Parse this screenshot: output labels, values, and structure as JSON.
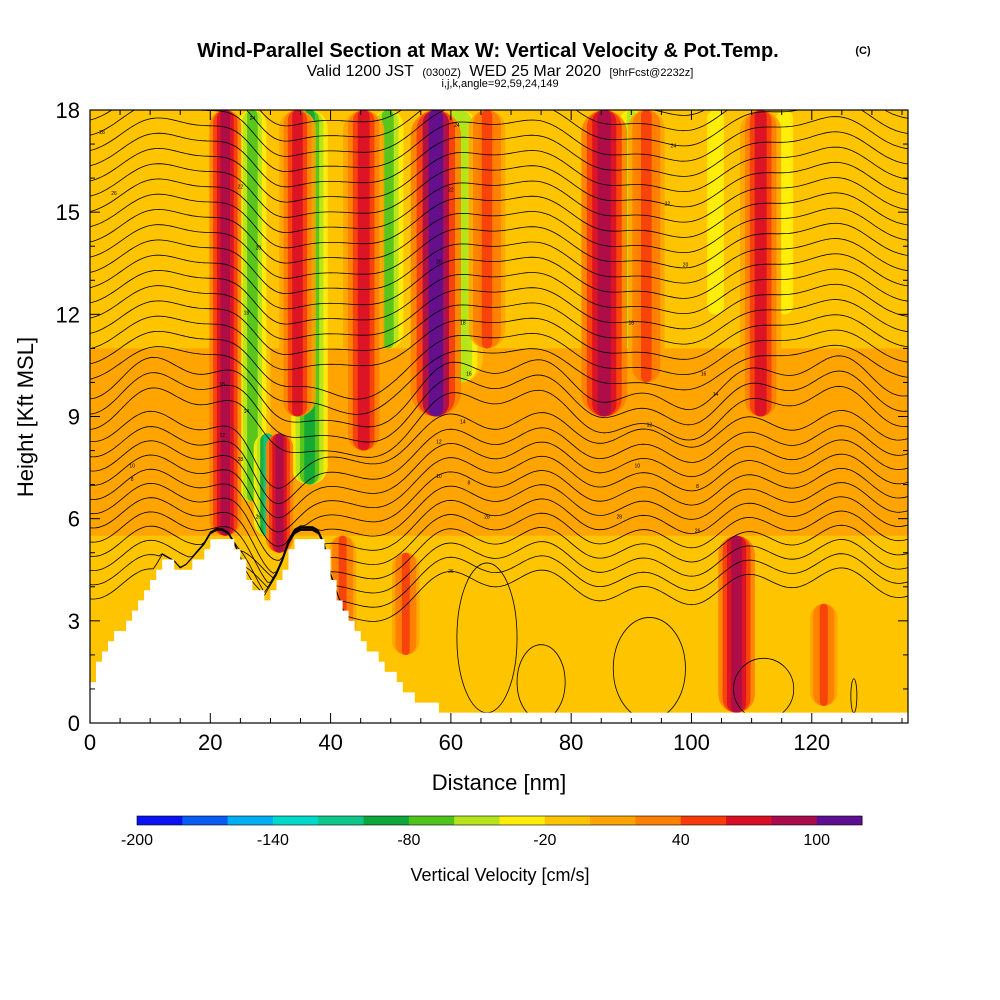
{
  "header": {
    "title": "Wind-Parallel Section at Max W: Vertical Velocity & Pot.Temp.",
    "title_tag": "(C)",
    "subtitle_a": "Valid 1200 JST",
    "subtitle_b": "(0300Z)",
    "subtitle_c": "WED 25 Mar 2020",
    "subtitle_d": "[9hrFcst@2232z]",
    "subtitle_e": "i,j,k,angle=92,59,24,149"
  },
  "chart_data": {
    "type": "heatmap",
    "xlabel": "Distance [nm]",
    "ylabel": "Height [Kft MSL]",
    "xlim": [
      0,
      136
    ],
    "ylim": [
      0,
      18
    ],
    "x_ticks": [
      0,
      20,
      40,
      60,
      80,
      100,
      120
    ],
    "y_ticks": [
      0,
      3,
      6,
      9,
      12,
      15,
      18
    ],
    "colorbar": {
      "label": "Vertical Velocity [cm/s]",
      "range": [
        -200,
        120
      ],
      "tick_values": [
        -200,
        -140,
        -80,
        -20,
        40,
        100
      ],
      "tick_labels": [
        "-200",
        "-140",
        "-80",
        "-20",
        "40",
        "100"
      ],
      "colors": [
        "#0b12f2",
        "#0a5bf2",
        "#00aef2",
        "#00d9c9",
        "#0fc58a",
        "#0da63a",
        "#50c21c",
        "#b4e41c",
        "#ffee0a",
        "#ffc400",
        "#ffa400",
        "#ff7f00",
        "#f73c0c",
        "#d81026",
        "#a80c4c",
        "#5d0f93"
      ]
    },
    "updraft_columns": [
      {
        "x": 22.5,
        "w": 1.4,
        "z0": 5.5,
        "z1": 18,
        "value": 80
      },
      {
        "x": 31.5,
        "w": 1.2,
        "z0": 5.0,
        "z1": 8.5,
        "value": 80
      },
      {
        "x": 34.5,
        "w": 1.6,
        "z0": 9.0,
        "z1": 18,
        "value": 60
      },
      {
        "x": 42.0,
        "w": 1.2,
        "z0": 2.5,
        "z1": 5.5,
        "value": 50
      },
      {
        "x": 45.5,
        "w": 1.8,
        "z0": 8.0,
        "z1": 18,
        "value": 70
      },
      {
        "x": 52.5,
        "w": 1.2,
        "z0": 2.0,
        "z1": 5.0,
        "value": 50
      },
      {
        "x": 57.5,
        "w": 2.2,
        "z0": 9.0,
        "z1": 18,
        "value": 110
      },
      {
        "x": 66.0,
        "w": 1.6,
        "z0": 11.0,
        "z1": 18,
        "value": 50
      },
      {
        "x": 85.5,
        "w": 2.0,
        "z0": 9.0,
        "z1": 18,
        "value": 80
      },
      {
        "x": 92.5,
        "w": 1.6,
        "z0": 10.0,
        "z1": 18,
        "value": 50
      },
      {
        "x": 107.5,
        "w": 1.6,
        "z0": 0.3,
        "z1": 5.5,
        "value": 80
      },
      {
        "x": 111.5,
        "w": 1.8,
        "z0": 9.0,
        "z1": 18,
        "value": 70
      },
      {
        "x": 122.0,
        "w": 1.2,
        "z0": 0.5,
        "z1": 3.5,
        "value": 40
      }
    ],
    "downdraft_columns": [
      {
        "x": 27.0,
        "w": 1.6,
        "z0": 6.5,
        "z1": 18,
        "value": -80
      },
      {
        "x": 29.5,
        "w": 1.2,
        "z0": 5.5,
        "z1": 8.5,
        "value": -110
      },
      {
        "x": 36.5,
        "w": 1.6,
        "z0": 7.0,
        "z1": 18,
        "value": -90
      },
      {
        "x": 49.5,
        "w": 1.8,
        "z0": 11.0,
        "z1": 18,
        "value": -80
      },
      {
        "x": 61.5,
        "w": 2.0,
        "z0": 10.0,
        "z1": 18,
        "value": -60
      },
      {
        "x": 90.0,
        "w": 1.4,
        "z0": 11.0,
        "z1": 18,
        "value": -50
      },
      {
        "x": 104.0,
        "w": 1.4,
        "z0": 12.0,
        "z1": 18,
        "value": -30
      },
      {
        "x": 115.5,
        "w": 1.4,
        "z0": 12.0,
        "z1": 18,
        "value": -30
      }
    ],
    "terrain": {
      "x": [
        0,
        1,
        2,
        4,
        6,
        8,
        10,
        12,
        14,
        15,
        16,
        17,
        18,
        19,
        20,
        21,
        22,
        23,
        24,
        25,
        26,
        27,
        28,
        29,
        30,
        31,
        32,
        33,
        34,
        35,
        36,
        37,
        38,
        39,
        40,
        42,
        44,
        46,
        48,
        50,
        52,
        54,
        56,
        58,
        60,
        136
      ],
      "z": [
        1.3,
        1.7,
        2.0,
        2.6,
        3.0,
        3.5,
        4.2,
        4.8,
        4.6,
        4.4,
        4.5,
        4.7,
        4.9,
        5.1,
        5.4,
        5.5,
        5.5,
        5.4,
        5.1,
        4.7,
        4.3,
        4.0,
        3.8,
        3.6,
        3.9,
        4.2,
        4.6,
        5.1,
        5.4,
        5.5,
        5.5,
        5.5,
        5.4,
        5.0,
        4.2,
        3.2,
        2.7,
        2.2,
        1.8,
        1.4,
        1.0,
        0.7,
        0.5,
        0.4,
        0.3,
        0.3
      ]
    },
    "theta_contour_labels": [
      "28",
      "26",
      "24",
      "22",
      "20",
      "18",
      "16",
      "14",
      "12",
      "10",
      "8"
    ]
  }
}
